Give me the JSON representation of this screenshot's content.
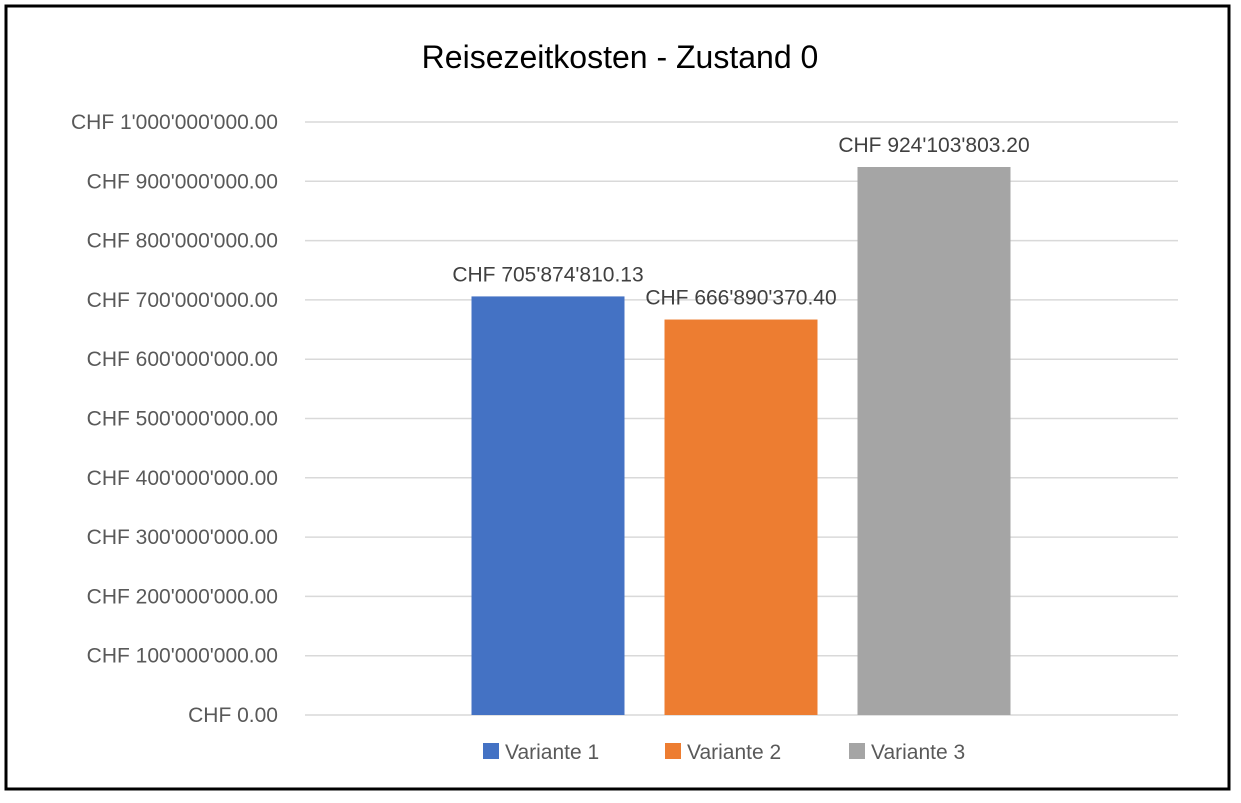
{
  "chart_data": {
    "type": "bar",
    "title": "Reisezeitkosten - Zustand 0",
    "xlabel": "",
    "ylabel": "",
    "ylim": [
      0,
      1000000000
    ],
    "y_tick_step": 100000000,
    "y_tick_labels": [
      "CHF 0.00",
      "CHF 100'000'000.00",
      "CHF 200'000'000.00",
      "CHF 300'000'000.00",
      "CHF 400'000'000.00",
      "CHF 500'000'000.00",
      "CHF 600'000'000.00",
      "CHF 700'000'000.00",
      "CHF 800'000'000.00",
      "CHF 900'000'000.00",
      "CHF 1'000'000'000.00"
    ],
    "grid": true,
    "legend_position": "bottom",
    "series": [
      {
        "name": "Variante 1",
        "value": 705874810.13,
        "label": "CHF 705'874'810.13",
        "color": "#4472C4"
      },
      {
        "name": "Variante 2",
        "value": 666890370.4,
        "label": "CHF 666'890'370.40",
        "color": "#ED7D31"
      },
      {
        "name": "Variante 3",
        "value": 924103803.2,
        "label": "CHF 924'103'803.20",
        "color": "#A5A5A5"
      }
    ]
  }
}
